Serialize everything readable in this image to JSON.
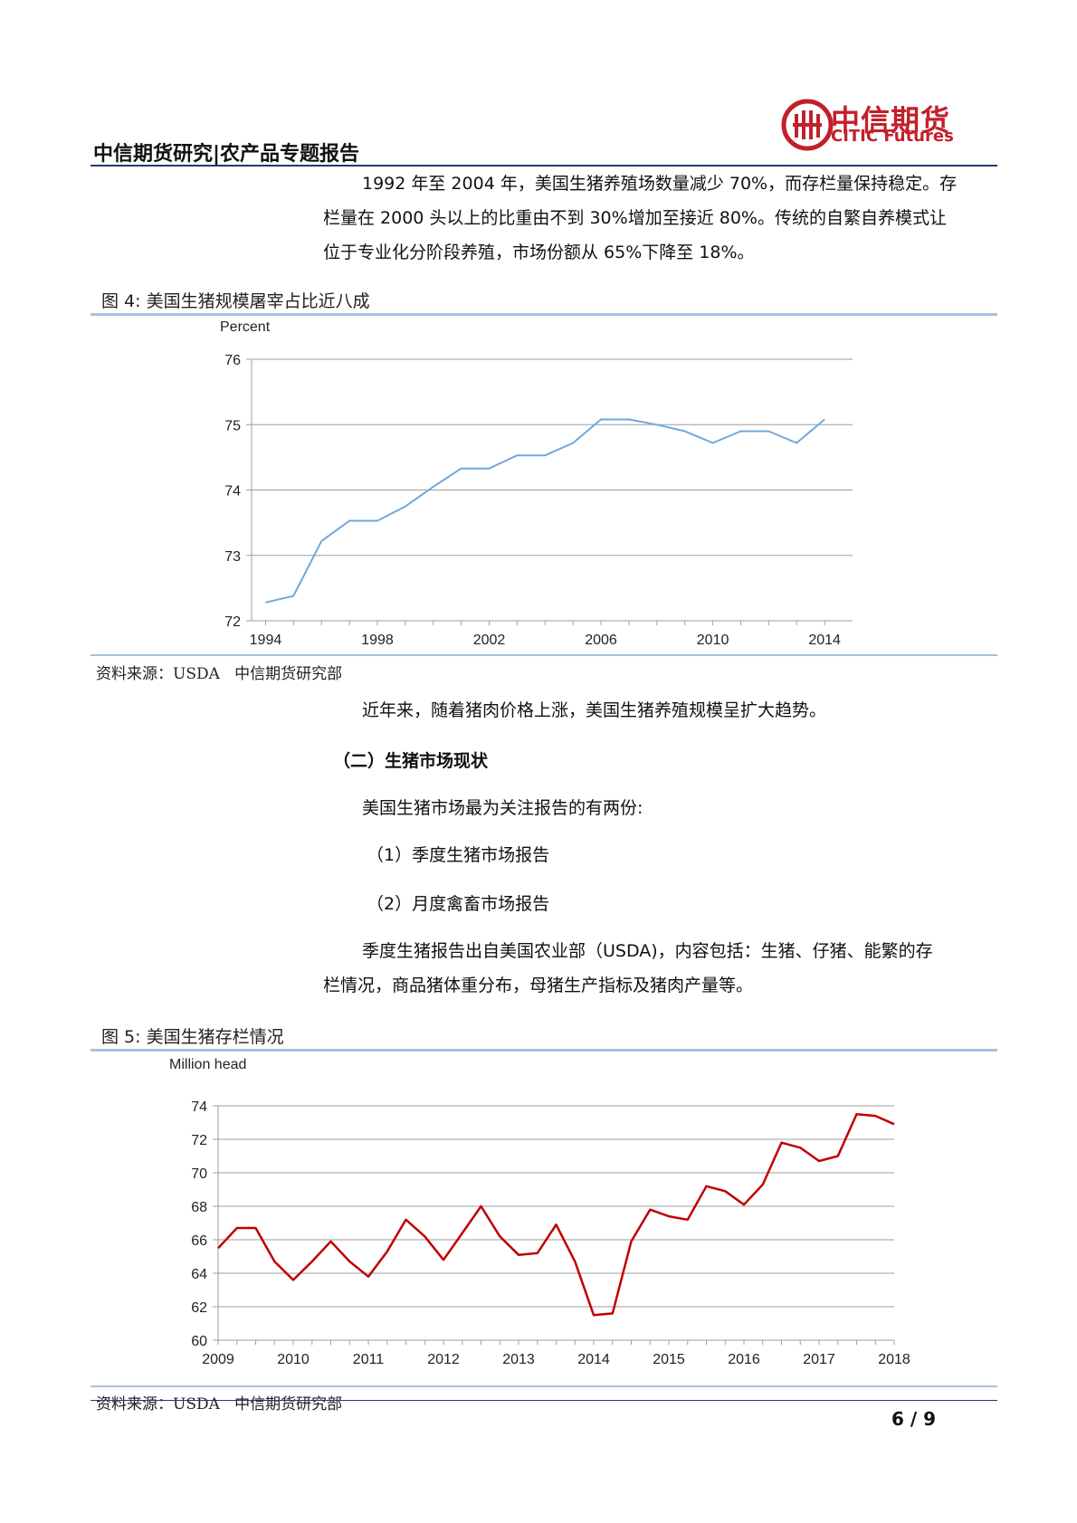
{
  "header": {
    "logo_cn": "中信期货",
    "logo_en": "CITIC Futures",
    "title": "中信期货研究|农产品专题报告"
  },
  "intro": {
    "lines": [
      "1992 年至 2004 年，美国生猪养殖场数量减少 70%，而存栏量保持稳定。存",
      "栏量在 2000 头以上的比重由不到 30%增加至接近 80%。传统的自繁自养模式让",
      "位于专业化分阶段养殖，市场份额从 65%下降至 18%。"
    ]
  },
  "figure4": {
    "caption": "图 4:    美国生猪规模屠宰占比近八成",
    "source_label": "资料来源：USDA",
    "source_org": "中信期货研究部"
  },
  "after_fig4": "近年来，随着猪肉价格上涨，美国生猪养殖规模呈扩大趋势。",
  "section2": {
    "heading": "（二）生猪市场现状",
    "p1": "美国生猪市场最为关注报告的有两份:",
    "item1": "（1）季度生猪市场报告",
    "item2": "（2）月度禽畜市场报告",
    "p2_lines": [
      "季度生猪报告出自美国农业部（USDA)，内容包括：生猪、仔猪、能繁的存",
      "栏情况，商品猪体重分布，母猪生产指标及猪肉产量等。"
    ]
  },
  "figure5": {
    "caption": "图 5:    美国生猪存栏情况",
    "source_label": "资料来源：USDA",
    "source_org": "中信期货研究部"
  },
  "footer": {
    "page": "6 / 9"
  },
  "chart_data": [
    {
      "type": "line",
      "ylabel": "Percent",
      "ylim": [
        72,
        76
      ],
      "yticks": [
        72,
        73,
        74,
        75,
        76
      ],
      "xticks": [
        "1994",
        "1998",
        "2002",
        "2006",
        "2010",
        "2014"
      ],
      "xlim": [
        1993.5,
        2015
      ],
      "grid": true,
      "color": "#6fa8dc",
      "x": [
        1994,
        1995,
        1996,
        1997,
        1998,
        1999,
        2000,
        2001,
        2002,
        2003,
        2004,
        2005,
        2006,
        2007,
        2008,
        2009,
        2010,
        2011,
        2012,
        2013,
        2014
      ],
      "values": [
        72.28,
        72.38,
        73.22,
        73.53,
        73.53,
        73.75,
        74.05,
        74.33,
        74.33,
        74.53,
        74.53,
        74.72,
        75.08,
        75.08,
        75.0,
        74.9,
        74.72,
        74.9,
        74.9,
        74.72,
        75.08
      ]
    },
    {
      "type": "line",
      "ylabel": "Million head",
      "ylim": [
        60,
        74
      ],
      "yticks": [
        60,
        62,
        64,
        66,
        68,
        70,
        72,
        74
      ],
      "xticks": [
        "2009",
        "2010",
        "2011",
        "2012",
        "2013",
        "2014",
        "2015",
        "2016",
        "2017",
        "2018"
      ],
      "xlim": [
        2009,
        2018
      ],
      "grid": true,
      "color": "#c00000",
      "x": [
        2009.0,
        2009.25,
        2009.5,
        2009.75,
        2010.0,
        2010.25,
        2010.5,
        2010.75,
        2011.0,
        2011.25,
        2011.5,
        2011.75,
        2012.0,
        2012.25,
        2012.5,
        2012.75,
        2013.0,
        2013.25,
        2013.5,
        2013.75,
        2014.0,
        2014.25,
        2014.5,
        2014.75,
        2015.0,
        2015.25,
        2015.5,
        2015.75,
        2016.0,
        2016.25,
        2016.5,
        2016.75,
        2017.0,
        2017.25,
        2017.5,
        2017.75,
        2018.0
      ],
      "values": [
        65.5,
        66.7,
        66.7,
        64.7,
        63.6,
        64.7,
        65.9,
        64.7,
        63.8,
        65.3,
        67.2,
        66.2,
        64.8,
        66.4,
        68.0,
        66.2,
        65.1,
        65.2,
        66.9,
        64.7,
        61.5,
        61.6,
        65.9,
        67.8,
        67.4,
        67.2,
        69.2,
        68.9,
        68.1,
        69.3,
        71.8,
        71.5,
        70.7,
        71.0,
        73.5,
        73.4,
        72.9
      ]
    }
  ]
}
